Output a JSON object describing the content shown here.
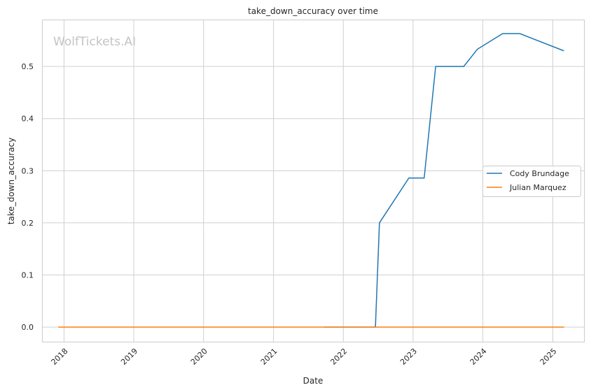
{
  "watermark": "WolfTickets.AI",
  "chart_data": {
    "type": "line",
    "title": "take_down_accuracy over time",
    "xlabel": "Date",
    "ylabel": "take_down_accuracy",
    "xlim": [
      "2017-09-08",
      "2025-06-13"
    ],
    "ylim": [
      -0.028,
      0.59
    ],
    "x_ticks": [
      "2018",
      "2019",
      "2020",
      "2021",
      "2022",
      "2023",
      "2024",
      "2025"
    ],
    "y_ticks": [
      "0.0",
      "0.1",
      "0.2",
      "0.3",
      "0.4",
      "0.5"
    ],
    "grid": true,
    "legend_position": "center-right",
    "series": [
      {
        "name": "Cody Brundage",
        "color": "#1f77b4",
        "x": [
          "2021-09-24",
          "2022-06-18",
          "2022-07-09",
          "2022-12-10",
          "2023-02-28",
          "2023-04-29",
          "2023-09-23",
          "2023-12-03",
          "2024-04-13",
          "2024-07-13",
          "2025-02-28"
        ],
        "y": [
          0.0,
          0.0,
          0.2,
          0.286,
          0.286,
          0.5,
          0.5,
          0.533,
          0.563,
          0.563,
          0.53
        ]
      },
      {
        "name": "Julian Marquez",
        "color": "#ff7f0e",
        "x": [
          "2017-12-02",
          "2025-03-01"
        ],
        "y": [
          0.0,
          0.0
        ]
      }
    ]
  }
}
